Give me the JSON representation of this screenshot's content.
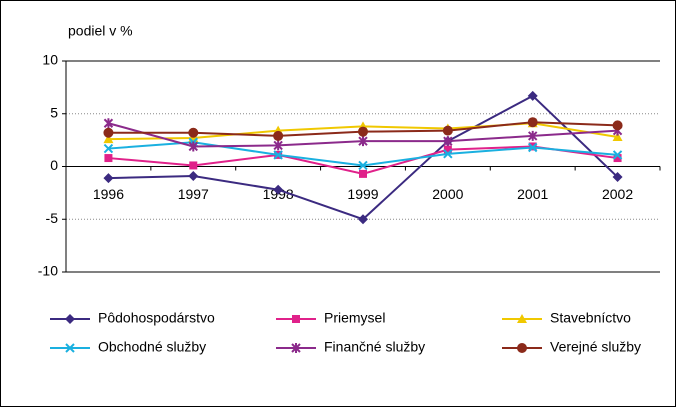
{
  "chart_data": {
    "type": "line",
    "y_axis_label": "podiel v %",
    "categories": [
      "1996",
      "1997",
      "1998",
      "1999",
      "2000",
      "2001",
      "2002"
    ],
    "series": [
      {
        "name": "Pôdohospodárstvo",
        "color": "#3b2a80",
        "marker": "diamond",
        "values": [
          -1.1,
          -0.9,
          -2.2,
          -5.0,
          2.4,
          6.7,
          -1.0
        ]
      },
      {
        "name": "Priemysel",
        "color": "#e0218a",
        "marker": "square",
        "values": [
          0.8,
          0.1,
          1.1,
          -0.7,
          1.6,
          1.9,
          0.8
        ]
      },
      {
        "name": "Stavebníctvo",
        "color": "#f0c800",
        "marker": "triangle",
        "values": [
          2.6,
          2.7,
          3.4,
          3.8,
          3.6,
          4.1,
          2.8
        ]
      },
      {
        "name": "Obchodné služby",
        "color": "#1ab0e0",
        "marker": "x",
        "values": [
          1.7,
          2.3,
          1.1,
          0.1,
          1.2,
          1.8,
          1.1
        ]
      },
      {
        "name": "Finančné služby",
        "color": "#8b2a8b",
        "marker": "star",
        "values": [
          4.1,
          1.9,
          2.0,
          2.4,
          2.4,
          2.9,
          3.4
        ]
      },
      {
        "name": "Verejné služby",
        "color": "#8b2a1a",
        "marker": "circle",
        "values": [
          3.2,
          3.2,
          2.9,
          3.3,
          3.4,
          4.2,
          3.9
        ]
      }
    ],
    "ylim": [
      -10,
      10
    ],
    "yticks": [
      -10,
      -5,
      0,
      5,
      10
    ],
    "grid": true
  }
}
